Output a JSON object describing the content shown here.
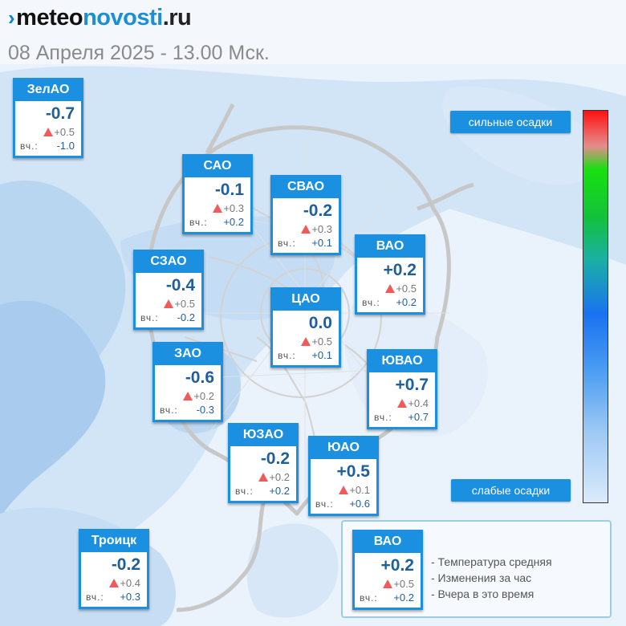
{
  "header": {
    "logo_mark": "›",
    "logo_part1": "meteo",
    "logo_part2": "novosti",
    "logo_part3": ".ru",
    "subtitle": "08 Апреля 2025 - 13.00 Мск."
  },
  "yesterday_label": "вч.:",
  "districts": [
    {
      "name": "ЗелАО",
      "temp": "-0.7",
      "change": "+0.5",
      "yesterday": "-1.0"
    },
    {
      "name": "САО",
      "temp": "-0.1",
      "change": "+0.3",
      "yesterday": "+0.2"
    },
    {
      "name": "СВАО",
      "temp": "-0.2",
      "change": "+0.3",
      "yesterday": "+0.1"
    },
    {
      "name": "ВАО",
      "temp": "+0.2",
      "change": "+0.5",
      "yesterday": "+0.2"
    },
    {
      "name": "СЗАО",
      "temp": "-0.4",
      "change": "+0.5",
      "yesterday": "-0.2"
    },
    {
      "name": "ЦАО",
      "temp": "0.0",
      "change": "+0.5",
      "yesterday": "+0.1"
    },
    {
      "name": "ЗАО",
      "temp": "-0.6",
      "change": "+0.2",
      "yesterday": "-0.3"
    },
    {
      "name": "ЮВАО",
      "temp": "+0.7",
      "change": "+0.4",
      "yesterday": "+0.7"
    },
    {
      "name": "ЮЗАО",
      "temp": "-0.2",
      "change": "+0.2",
      "yesterday": "+0.2"
    },
    {
      "name": "ЮАО",
      "temp": "+0.5",
      "change": "+0.1",
      "yesterday": "+0.6"
    },
    {
      "name": "Троицк",
      "temp": "-0.2",
      "change": "+0.4",
      "yesterday": "+0.3"
    }
  ],
  "precip_scale": {
    "top_label": "сильные осадки",
    "bottom_label": "слабые осадки"
  },
  "legend": {
    "example": {
      "name": "ВАО",
      "temp": "+0.2",
      "change": "+0.5",
      "yesterday": "+0.2"
    },
    "lines": [
      "- Температура средняя",
      "- Изменения за час",
      "- Вчера в это время"
    ]
  },
  "colors": {
    "accent": "#1b8fe0",
    "temperature_text": "#1f5f9c",
    "change_arrow": "#f05a5a",
    "precip_light": "#dbeafa",
    "precip_medium": "#a9cdee"
  }
}
